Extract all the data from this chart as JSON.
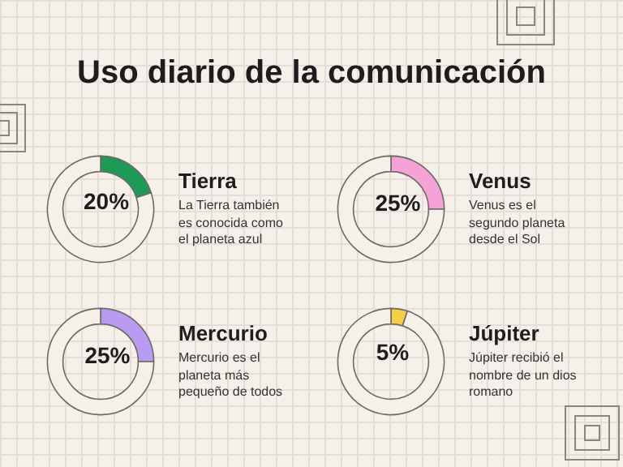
{
  "chart_data": [
    {
      "type": "other",
      "title": "Uso diario de la comunicación"
    },
    {
      "type": "donut",
      "title": "Tierra",
      "annotations": [
        "La Tierra también es conocida como el planeta azul"
      ],
      "categories": [
        null,
        null
      ],
      "values": [
        20,
        80
      ],
      "colors": [
        "#1e9a57",
        "#f5f0ea"
      ],
      "value_labels": [
        "20%",
        null
      ]
    },
    {
      "type": "donut",
      "title": "Venus",
      "annotations": [
        "Venus es el segundo planeta desde el Sol"
      ],
      "categories": [
        null,
        null
      ],
      "values": [
        25,
        75
      ],
      "colors": [
        "#f5a3d6",
        "#f5f0ea"
      ],
      "value_labels": [
        "25%",
        null
      ]
    },
    {
      "type": "donut",
      "title": "Mercurio",
      "annotations": [
        "Mercurio es el planeta más pequeño de todos"
      ],
      "categories": [
        null,
        null
      ],
      "values": [
        25,
        75
      ],
      "colors": [
        "#b99cf2",
        "#f5f0ea"
      ],
      "value_labels": [
        "25%",
        null
      ]
    },
    {
      "type": "donut",
      "title": "Júpiter",
      "annotations": [
        "Júpiter recibió el nombre de un dios romano"
      ],
      "categories": [
        null,
        null
      ],
      "values": [
        5,
        95
      ],
      "colors": [
        "#f5cd47",
        "#f5f0ea"
      ],
      "value_labels": [
        "5%",
        null
      ]
    }
  ]
}
